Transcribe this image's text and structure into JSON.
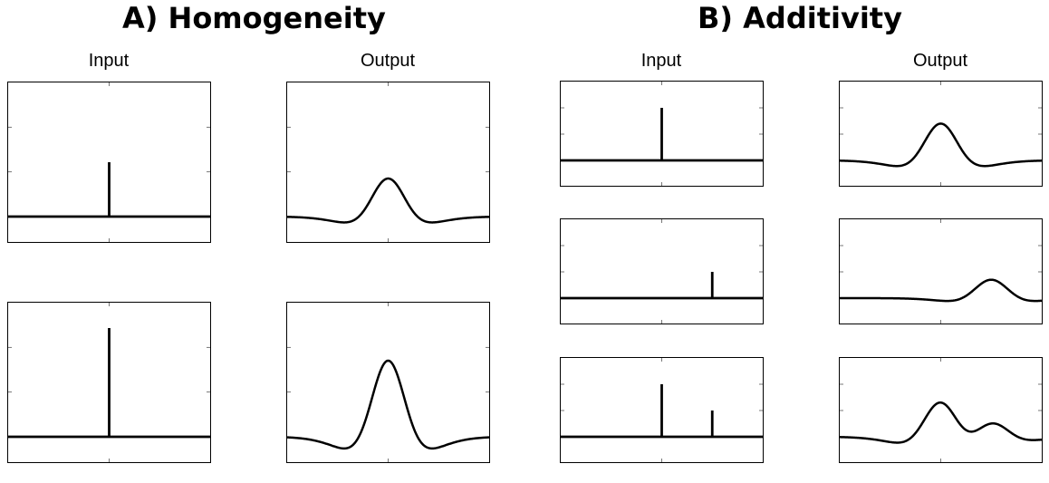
{
  "sections": [
    {
      "title": "A) Homogeneity",
      "input_label": "Input",
      "output_label": "Output"
    },
    {
      "title": "B) Additivity",
      "input_label": "Input",
      "output_label": "Output"
    }
  ],
  "colors": {
    "line": "#000000",
    "frame": "#000000",
    "background": "#ffffff"
  },
  "homogeneity_rows": [
    {
      "impulses": [
        {
          "position": 0.5,
          "amplitude": 1.0
        }
      ]
    },
    {
      "impulses": [
        {
          "position": 0.5,
          "amplitude": 2.0
        }
      ]
    }
  ],
  "additivity_rows": [
    {
      "impulses": [
        {
          "position": 0.5,
          "amplitude": 1.0
        }
      ]
    },
    {
      "impulses": [
        {
          "position": 0.75,
          "amplitude": 0.5
        }
      ]
    },
    {
      "impulses": [
        {
          "position": 0.5,
          "amplitude": 1.0
        },
        {
          "position": 0.75,
          "amplitude": 0.5
        }
      ]
    }
  ]
}
